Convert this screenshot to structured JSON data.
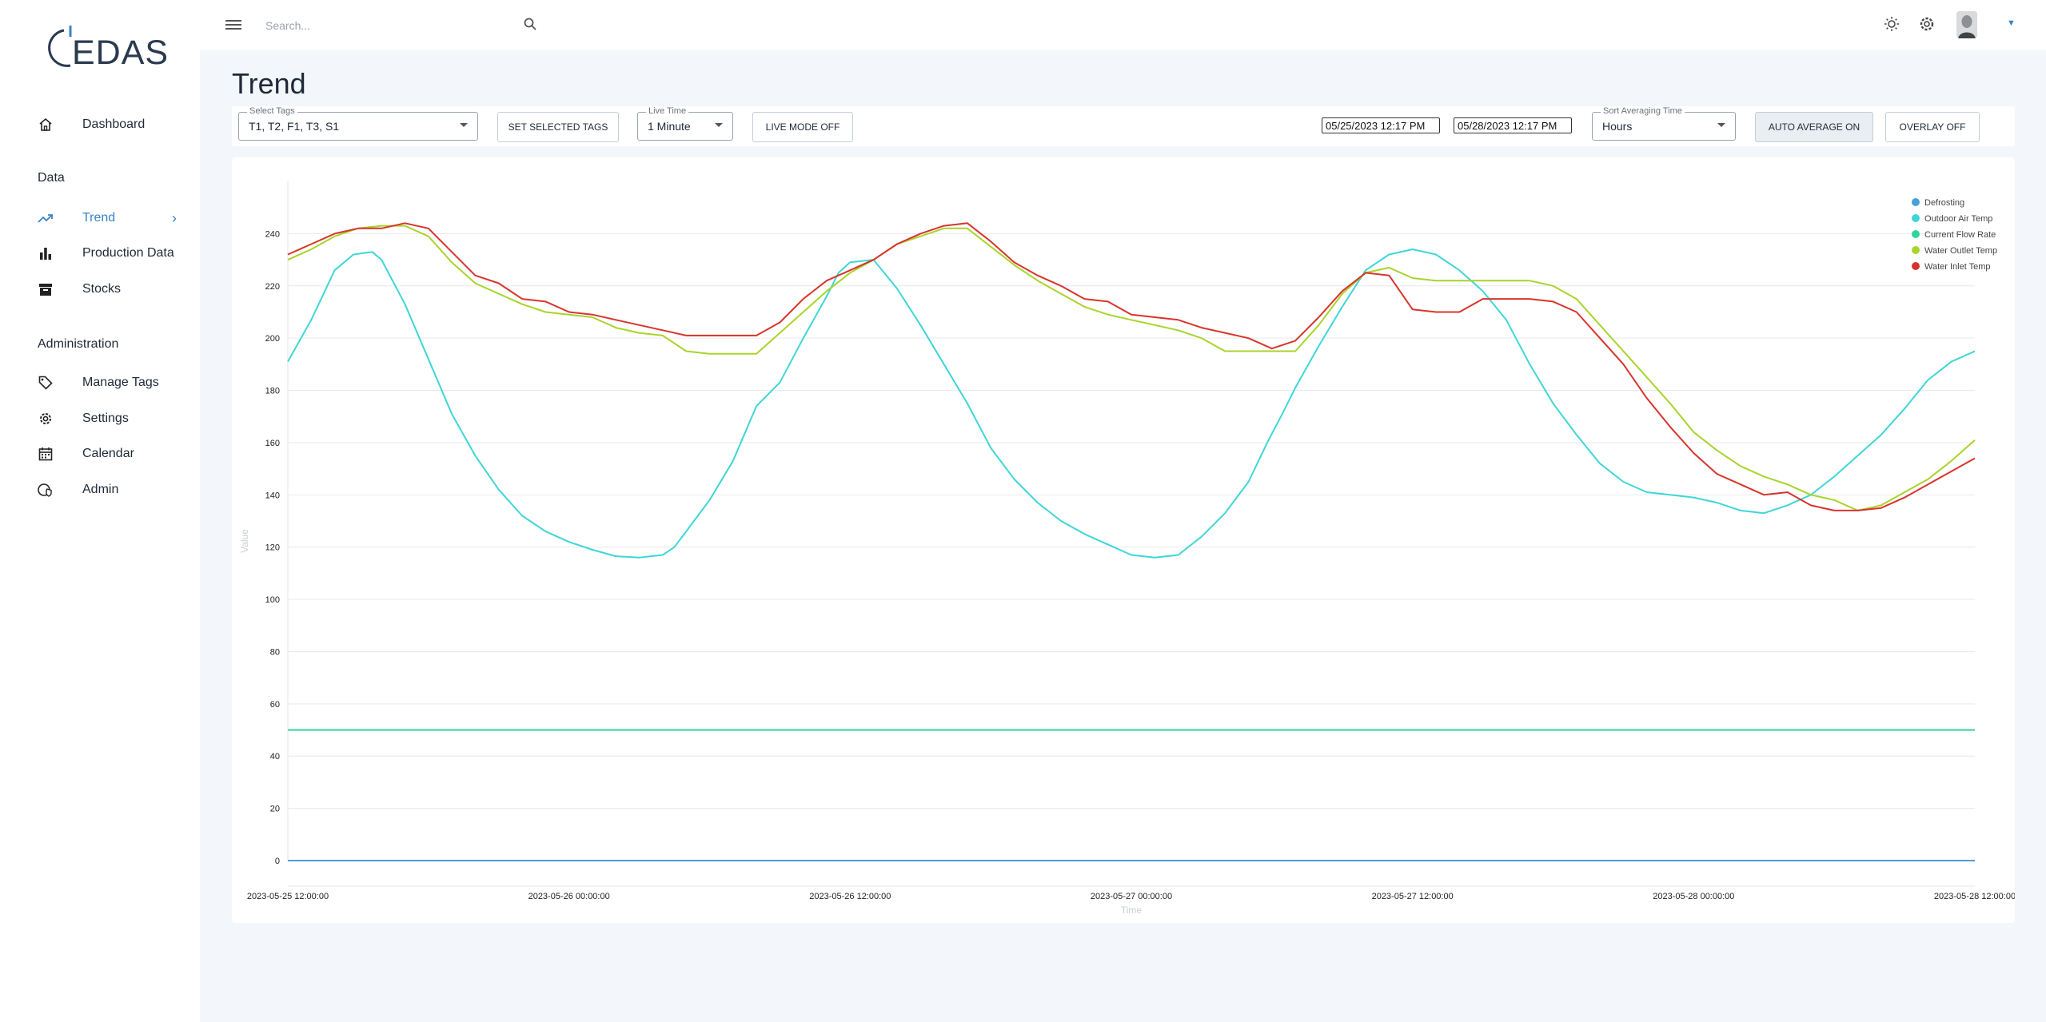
{
  "app": {
    "logo_text": "EDAS"
  },
  "sidebar": {
    "dashboard": "Dashboard",
    "section_data": "Data",
    "trend": "Trend",
    "production_data": "Production Data",
    "stocks": "Stocks",
    "section_admin": "Administration",
    "manage_tags": "Manage Tags",
    "settings": "Settings",
    "calendar": "Calendar",
    "admin": "Admin"
  },
  "topbar": {
    "search_placeholder": "Search..."
  },
  "page": {
    "title": "Trend"
  },
  "toolbar": {
    "select_tags_legend": "Select Tags",
    "select_tags_value": "T1, T2, F1, T3, S1",
    "set_selected_tags": "SET SELECTED TAGS",
    "live_time_legend": "Live Time",
    "live_time_value": "1 Minute",
    "live_mode": "LIVE MODE OFF",
    "date_from": "05/25/2023 12:17 PM",
    "date_to": "05/28/2023 12:17 PM",
    "sort_avg_legend": "Sort Averaging Time",
    "sort_avg_value": "Hours",
    "auto_average": "AUTO AVERAGE ON",
    "overlay": "OVERLAY OFF"
  },
  "chart_data": {
    "type": "line",
    "xlabel": "Time",
    "ylabel": "Value",
    "ylim": [
      0,
      260
    ],
    "yticks": [
      0,
      20,
      40,
      60,
      80,
      100,
      120,
      140,
      160,
      180,
      200,
      220,
      240
    ],
    "xlim_hours": [
      0,
      72
    ],
    "xtick_labels": [
      "2023-05-25 12:00:00",
      "2023-05-26 00:00:00",
      "2023-05-26 12:00:00",
      "2023-05-27 00:00:00",
      "2023-05-27 12:00:00",
      "2023-05-28 00:00:00",
      "2023-05-28 12:00:00"
    ],
    "grid": true,
    "legend_position": "top-right",
    "series": [
      {
        "name": "Defrosting",
        "color": "#4a9fd8",
        "x": [
          0,
          72
        ],
        "y": [
          0,
          0
        ]
      },
      {
        "name": "Outdoor Air Temp",
        "color": "#3fd6d8",
        "x": [
          0,
          1,
          2,
          2.8,
          3.6,
          4,
          5,
          6,
          7,
          8,
          9,
          10,
          11,
          12,
          13,
          14,
          15,
          16,
          16.5,
          17,
          18,
          19,
          20,
          21,
          22,
          23,
          23.5,
          24,
          25,
          26,
          27,
          28,
          29,
          30,
          31,
          32,
          33,
          34,
          35,
          36,
          37,
          38,
          39,
          40,
          41,
          41.8,
          42.5,
          43,
          44,
          45,
          46,
          47,
          48,
          49,
          50,
          51,
          52,
          53,
          54,
          55,
          56,
          57,
          58,
          59,
          60,
          61,
          62,
          63,
          64,
          65,
          66,
          67,
          68,
          69,
          70,
          71,
          72
        ],
        "y": [
          191,
          207,
          226,
          232,
          233,
          230,
          213,
          192,
          171,
          155,
          142,
          132,
          126,
          122,
          119,
          116.5,
          116,
          117,
          120,
          126,
          138,
          153,
          174,
          183,
          200,
          216,
          225,
          229,
          230,
          219,
          205,
          190,
          175,
          158,
          146,
          137,
          130,
          125,
          121,
          117,
          116,
          117,
          124,
          133,
          145,
          160,
          172,
          181,
          197,
          212,
          226,
          232,
          234,
          232,
          226,
          218,
          207,
          190,
          175,
          163,
          152,
          145,
          141,
          140,
          139,
          137,
          134,
          133,
          136,
          140,
          147,
          155,
          163,
          173,
          184,
          191,
          195
        ]
      },
      {
        "name": "Current Flow Rate",
        "color": "#2fd59e",
        "x": [
          0,
          72
        ],
        "y": [
          50,
          50
        ]
      },
      {
        "name": "Water Outlet Temp",
        "color": "#a9d42b",
        "x": [
          0,
          1,
          2,
          3,
          4,
          5,
          6,
          7,
          8,
          9,
          10,
          11,
          12,
          13,
          14,
          15,
          16,
          17,
          18,
          19,
          20,
          21,
          22,
          23,
          24,
          25,
          26,
          27,
          28,
          29,
          30,
          31,
          32,
          33,
          34,
          35,
          36,
          37,
          38,
          39,
          40,
          41,
          42,
          43,
          44,
          45,
          46,
          47,
          48,
          49,
          50,
          51,
          52,
          53,
          54,
          55,
          56,
          57,
          58,
          59,
          60,
          61,
          62,
          63,
          64,
          65,
          66,
          67,
          68,
          69,
          70,
          71,
          72
        ],
        "y": [
          230,
          234,
          239,
          242,
          243,
          243,
          239,
          229,
          221,
          217,
          213,
          210,
          209,
          208,
          204,
          202,
          201,
          195,
          194,
          194,
          194,
          202,
          210,
          218,
          225,
          230,
          236,
          239,
          242,
          242,
          235,
          228,
          222,
          217,
          212,
          209,
          207,
          205,
          203,
          200,
          195,
          195,
          195,
          195,
          205,
          217,
          225,
          227,
          223,
          222,
          222,
          222,
          222,
          222,
          220,
          215,
          205,
          195,
          185,
          175,
          164,
          157,
          151,
          147,
          144,
          140,
          138,
          134,
          136,
          141,
          146,
          153,
          161
        ]
      },
      {
        "name": "Water Inlet Temp",
        "color": "#d8342c",
        "x": [
          0,
          1,
          2,
          3,
          4,
          5,
          6,
          7,
          8,
          9,
          10,
          11,
          12,
          13,
          14,
          15,
          16,
          17,
          18,
          19,
          20,
          21,
          22,
          23,
          24,
          25,
          26,
          27,
          28,
          29,
          30,
          31,
          32,
          33,
          34,
          35,
          36,
          37,
          38,
          39,
          40,
          41,
          42,
          43,
          44,
          45,
          46,
          47,
          48,
          49,
          50,
          51,
          52,
          53,
          54,
          55,
          56,
          57,
          58,
          59,
          60,
          61,
          62,
          63,
          64,
          65,
          66,
          67,
          68,
          69,
          70,
          71,
          72
        ],
        "y": [
          232,
          236,
          240,
          242,
          242,
          244,
          242,
          233,
          224,
          221,
          215,
          214,
          210,
          209,
          207,
          205,
          203,
          201,
          201,
          201,
          201,
          206,
          215,
          222,
          226,
          230,
          236,
          240,
          243,
          244,
          237,
          229,
          224,
          220,
          215,
          214,
          209,
          208,
          207,
          204,
          202,
          200,
          196,
          199,
          208,
          218,
          225,
          224,
          211,
          210,
          210,
          215,
          215,
          215,
          214,
          210,
          200,
          190,
          177,
          166,
          156,
          148,
          144,
          140,
          141,
          136,
          134,
          134,
          135,
          139,
          144,
          149,
          154
        ]
      }
    ]
  }
}
